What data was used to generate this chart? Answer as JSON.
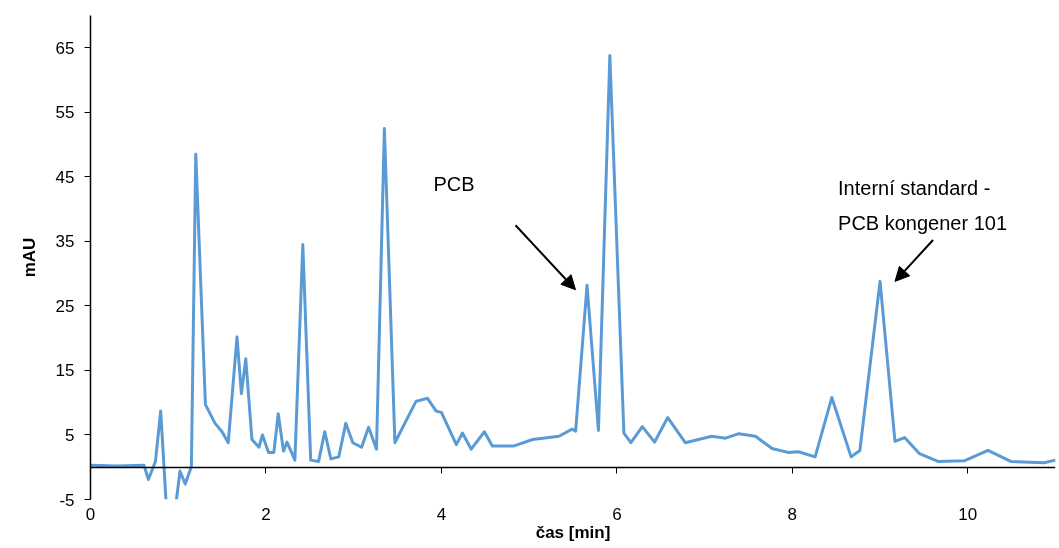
{
  "chart_data": {
    "type": "line",
    "xlabel": "čas [min]",
    "ylabel": "mAU",
    "xlim": [
      0,
      11
    ],
    "ylim": [
      -5,
      70
    ],
    "xticks": [
      0,
      2,
      4,
      6,
      8,
      10
    ],
    "yticks": [
      -5,
      5,
      15,
      25,
      35,
      45,
      55,
      65
    ],
    "grid": false,
    "marker": "none",
    "line_style": "solid",
    "series": [
      {
        "color": "#5b9bd5",
        "x": [
          0,
          0.3,
          0.61,
          0.66,
          0.74,
          0.8,
          0.86,
          0.92,
          0.98,
          1.02,
          1.08,
          1.15,
          1.2,
          1.31,
          1.42,
          1.5,
          1.57,
          1.67,
          1.72,
          1.77,
          1.84,
          1.92,
          1.96,
          2.03,
          2.09,
          2.14,
          2.2,
          2.24,
          2.33,
          2.42,
          2.51,
          2.6,
          2.67,
          2.74,
          2.83,
          2.91,
          2.99,
          3.09,
          3.17,
          3.26,
          3.35,
          3.47,
          3.71,
          3.84,
          3.94,
          4.0,
          4.17,
          4.24,
          4.34,
          4.49,
          4.58,
          4.83,
          5.04,
          5.34,
          5.49,
          5.53,
          5.66,
          5.79,
          5.92,
          6.08,
          6.16,
          6.29,
          6.43,
          6.58,
          6.78,
          7.08,
          7.24,
          7.39,
          7.58,
          7.77,
          7.95,
          8.07,
          8.26,
          8.45,
          8.67,
          8.77,
          9.0,
          9.17,
          9.28,
          9.45,
          9.66,
          9.96,
          10.23,
          10.49,
          10.87,
          11.0
        ],
        "values": [
          0.3,
          0.2,
          0.3,
          -1.9,
          0.9,
          8.7,
          -5,
          null,
          -5,
          -0.6,
          -2.6,
          0.1,
          48.5,
          9.7,
          6.8,
          5.5,
          3.8,
          20.2,
          11.4,
          16.8,
          4.3,
          3.1,
          5.0,
          2.3,
          2.3,
          8.3,
          2.5,
          3.9,
          1.1,
          34.5,
          1.1,
          0.9,
          5.5,
          1.3,
          1.6,
          6.8,
          3.8,
          3.1,
          6.2,
          2.8,
          52.5,
          3.8,
          10.2,
          10.7,
          8.7,
          8.5,
          3.5,
          5.3,
          2.8,
          5.5,
          3.3,
          3.3,
          4.3,
          4.8,
          5.9,
          5.6,
          28.2,
          5.7,
          63.8,
          5.3,
          3.8,
          6.3,
          3.9,
          7.7,
          3.8,
          4.8,
          4.5,
          5.2,
          4.8,
          2.9,
          2.3,
          2.4,
          1.6,
          10.8,
          1.6,
          2.6,
          28.8,
          4.0,
          4.6,
          2.1,
          0.9,
          1.0,
          2.6,
          0.9,
          0.7,
          1.1
        ]
      }
    ],
    "annotations": [
      "PCB",
      {
        "text": "Interní standard -\nPCB kongener 101",
        "x": 9.0,
        "y": 28.8
      }
    ]
  }
}
